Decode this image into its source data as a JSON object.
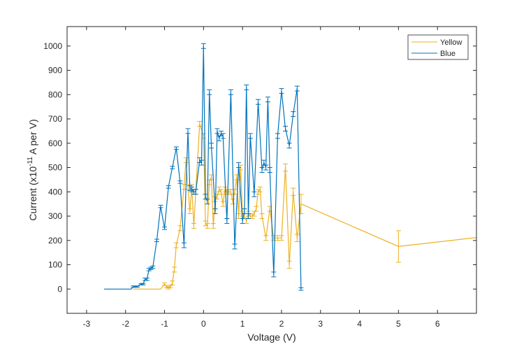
{
  "chart_data": {
    "type": "line",
    "title": "",
    "xlabel": "Voltage (V)",
    "ylabel": {
      "prefix": "Current (x10",
      "superscript": "-11",
      "suffix": " A per V)"
    },
    "xlim": [
      -3.5,
      7.0
    ],
    "ylim": [
      -100,
      1080
    ],
    "xticks": [
      "-3",
      "-2",
      "-1",
      "0",
      "1",
      "2",
      "3",
      "4",
      "5",
      "6"
    ],
    "yticks": [
      "0",
      "100",
      "200",
      "300",
      "400",
      "500",
      "600",
      "700",
      "800",
      "900",
      "1000"
    ],
    "grid": false,
    "legend_position": "top-right",
    "series": [
      {
        "name": "Yellow",
        "color": "#EDB120",
        "x": [
          -1.8,
          -1.7,
          -1.6,
          -1.5,
          -1.4,
          -1.3,
          -1.2,
          -1.1,
          -1.0,
          -0.95,
          -0.9,
          -0.85,
          -0.8,
          -0.75,
          -0.7,
          -0.6,
          -0.5,
          -0.45,
          -0.4,
          -0.35,
          -0.3,
          -0.25,
          -0.2,
          -0.1,
          0.0,
          0.05,
          0.1,
          0.15,
          0.2,
          0.25,
          0.3,
          0.35,
          0.4,
          0.45,
          0.5,
          0.55,
          0.6,
          0.65,
          0.7,
          0.75,
          0.8,
          0.85,
          0.9,
          0.95,
          1.0,
          1.05,
          1.1,
          1.15,
          1.2,
          1.25,
          1.3,
          1.35,
          1.4,
          1.45,
          1.5,
          1.6,
          1.7,
          1.8,
          1.9,
          2.0,
          2.1,
          2.2,
          2.3,
          2.4,
          2.5,
          5.0,
          7.0
        ],
        "y": [
          0,
          0,
          0,
          0,
          0,
          0,
          0,
          0,
          20,
          10,
          5,
          10,
          25,
          80,
          180,
          250,
          420,
          530,
          420,
          320,
          420,
          260,
          400,
          680,
          630,
          270,
          260,
          440,
          460,
          260,
          370,
          380,
          410,
          400,
          350,
          410,
          400,
          400,
          400,
          360,
          400,
          460,
          300,
          500,
          310,
          300,
          280,
          310,
          300,
          300,
          310,
          330,
          400,
          410,
          300,
          210,
          330,
          210,
          210,
          210,
          500,
          100,
          400,
          210,
          350,
          175,
          212
        ],
        "err": [
          0,
          0,
          0,
          0,
          0,
          0,
          0,
          0,
          5,
          5,
          5,
          5,
          8,
          10,
          10,
          10,
          10,
          10,
          10,
          10,
          10,
          10,
          10,
          10,
          10,
          10,
          10,
          10,
          10,
          10,
          10,
          10,
          10,
          10,
          10,
          10,
          10,
          10,
          10,
          10,
          10,
          10,
          10,
          10,
          10,
          10,
          10,
          10,
          10,
          10,
          10,
          10,
          10,
          10,
          10,
          10,
          10,
          10,
          10,
          10,
          15,
          15,
          15,
          15,
          40,
          65,
          0
        ]
      },
      {
        "name": "Blue",
        "color": "#0072BD",
        "x": [
          -2.55,
          -2.45,
          -2.35,
          -2.25,
          -2.15,
          -2.05,
          -1.95,
          -1.85,
          -1.8,
          -1.7,
          -1.6,
          -1.55,
          -1.5,
          -1.45,
          -1.4,
          -1.35,
          -1.3,
          -1.2,
          -1.1,
          -1.0,
          -0.9,
          -0.8,
          -0.7,
          -0.6,
          -0.5,
          -0.4,
          -0.35,
          -0.3,
          -0.25,
          -0.2,
          -0.1,
          -0.05,
          0.0,
          0.05,
          0.1,
          0.15,
          0.2,
          0.3,
          0.35,
          0.4,
          0.45,
          0.5,
          0.6,
          0.7,
          0.8,
          0.9,
          1.0,
          1.05,
          1.1,
          1.15,
          1.2,
          1.3,
          1.4,
          1.5,
          1.55,
          1.6,
          1.65,
          1.7,
          1.8,
          1.9,
          2.0,
          2.1,
          2.2,
          2.3,
          2.4,
          2.5
        ],
        "y": [
          0,
          0,
          0,
          0,
          0,
          0,
          0,
          0,
          10,
          10,
          20,
          20,
          40,
          40,
          80,
          85,
          90,
          200,
          340,
          250,
          420,
          500,
          580,
          440,
          180,
          650,
          415,
          410,
          400,
          400,
          530,
          520,
          1000,
          380,
          360,
          810,
          590,
          320,
          650,
          620,
          640,
          630,
          280,
          810,
          175,
          510,
          280,
          320,
          830,
          300,
          630,
          390,
          770,
          490,
          520,
          500,
          780,
          490,
          60,
          630,
          815,
          660,
          590,
          720,
          825,
          0
        ],
        "err": [
          0,
          0,
          0,
          0,
          0,
          0,
          0,
          0,
          3,
          3,
          3,
          3,
          5,
          5,
          5,
          5,
          5,
          5,
          5,
          5,
          5,
          5,
          5,
          5,
          10,
          10,
          10,
          10,
          10,
          10,
          10,
          10,
          10,
          10,
          10,
          10,
          10,
          10,
          10,
          10,
          10,
          10,
          10,
          10,
          10,
          10,
          10,
          10,
          10,
          10,
          10,
          10,
          10,
          10,
          10,
          10,
          10,
          10,
          10,
          10,
          10,
          10,
          10,
          10,
          10,
          5
        ]
      }
    ]
  }
}
